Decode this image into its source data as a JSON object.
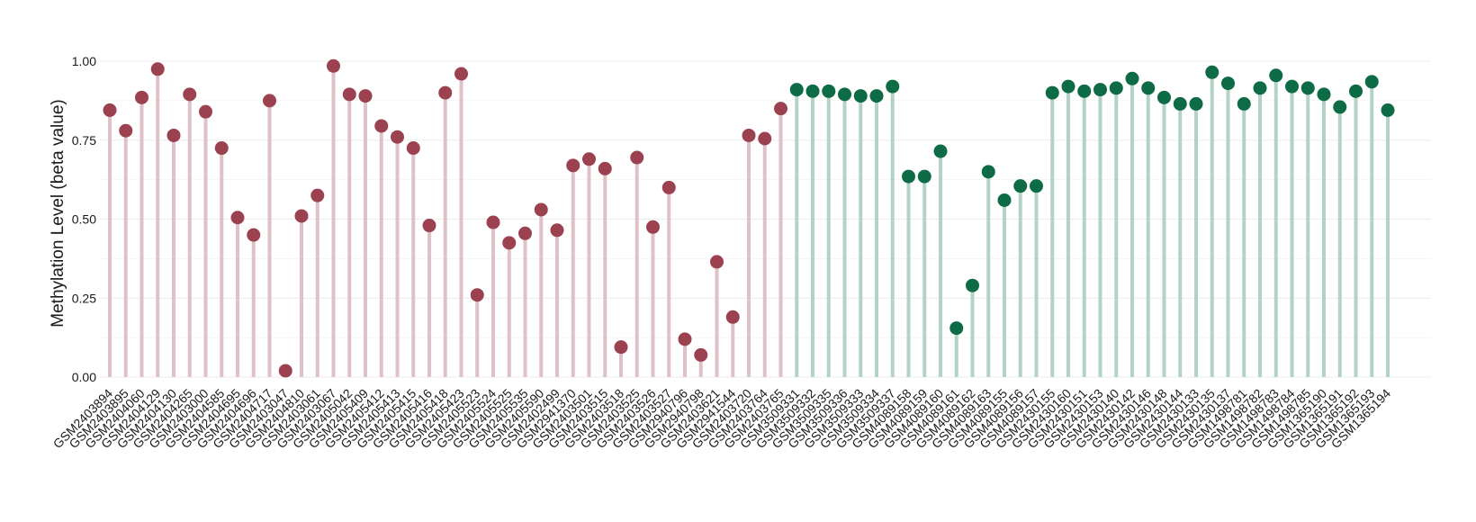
{
  "chart_data": {
    "type": "lollipop",
    "title": "",
    "xlabel": "",
    "ylabel": "Methylation Level (beta value)",
    "ylim": [
      0,
      1.05
    ],
    "yticks": [
      0.0,
      0.25,
      0.5,
      0.75,
      1.0
    ],
    "ytick_labels": [
      "0.00",
      "0.25",
      "0.50",
      "0.75",
      "1.00"
    ],
    "grid": "horizontal",
    "legend": "none",
    "colors": {
      "group1_point": "#9b4150",
      "group1_stem": "#dfc2c8",
      "group2_point": "#0d6b45",
      "group2_stem": "#b3d3c6",
      "grid": "#ececec"
    },
    "groups": [
      {
        "color_key": "group1",
        "categories": [
          "GSM2403894",
          "GSM2403895",
          "GSM2404060",
          "GSM2404129",
          "GSM2404130",
          "GSM2404265",
          "GSM2403000",
          "GSM2404585",
          "GSM2404695",
          "GSM2404696",
          "GSM2404717",
          "GSM2403047",
          "GSM2404810",
          "GSM2403061",
          "GSM2403067",
          "GSM2405042",
          "GSM2405409",
          "GSM2405412",
          "GSM2405413",
          "GSM2405415",
          "GSM2405416",
          "GSM2405418",
          "GSM2405423",
          "GSM2405523",
          "GSM2405524",
          "GSM2405525",
          "GSM2405535",
          "GSM2405590",
          "GSM2402499",
          "GSM2941370",
          "GSM2403501",
          "GSM2403515",
          "GSM2403518",
          "GSM2403525",
          "GSM2403526",
          "GSM2403527",
          "GSM2940796",
          "GSM2940798",
          "GSM2403621",
          "GSM2941544",
          "GSM2403720",
          "GSM2403764",
          "GSM2403765"
        ],
        "values": [
          0.845,
          0.78,
          0.885,
          0.975,
          0.765,
          0.895,
          0.84,
          0.725,
          0.505,
          0.45,
          0.875,
          0.02,
          0.51,
          0.575,
          0.985,
          0.895,
          0.89,
          0.795,
          0.76,
          0.725,
          0.48,
          0.9,
          0.96,
          0.26,
          0.49,
          0.425,
          0.455,
          0.53,
          0.465,
          0.67,
          0.69,
          0.66,
          0.095,
          0.695,
          0.475,
          0.6,
          0.12,
          0.07,
          0.365,
          0.19,
          0.765,
          0.755,
          0.85
        ]
      },
      {
        "color_key": "group2",
        "categories": [
          "GSM3509331",
          "GSM3509332",
          "GSM3509335",
          "GSM3509336",
          "GSM3509333",
          "GSM3509334",
          "GSM3509337",
          "GSM4089158",
          "GSM4089159",
          "GSM4089160",
          "GSM4089161",
          "GSM4089162",
          "GSM4089163",
          "GSM4089155",
          "GSM4089156",
          "GSM4089157",
          "GSM2430155",
          "GSM2430160",
          "GSM2430151",
          "GSM2430153",
          "GSM2430140",
          "GSM2430142",
          "GSM2430146",
          "GSM2430148",
          "GSM2430144",
          "GSM2430133",
          "GSM2430135",
          "GSM2430137",
          "GSM1498781",
          "GSM1498782",
          "GSM1498783",
          "GSM1498784",
          "GSM1498785",
          "GSM1365190",
          "GSM1365191",
          "GSM1365192",
          "GSM1365193",
          "GSM1365194"
        ],
        "values": [
          0.91,
          0.905,
          0.905,
          0.895,
          0.89,
          0.89,
          0.92,
          0.635,
          0.635,
          0.715,
          0.155,
          0.29,
          0.65,
          0.56,
          0.605,
          0.605,
          0.9,
          0.92,
          0.905,
          0.91,
          0.915,
          0.945,
          0.915,
          0.885,
          0.865,
          0.865,
          0.965,
          0.93,
          0.865,
          0.915,
          0.955,
          0.92,
          0.915,
          0.895,
          0.855,
          0.905,
          0.935,
          0.845
        ]
      }
    ]
  }
}
